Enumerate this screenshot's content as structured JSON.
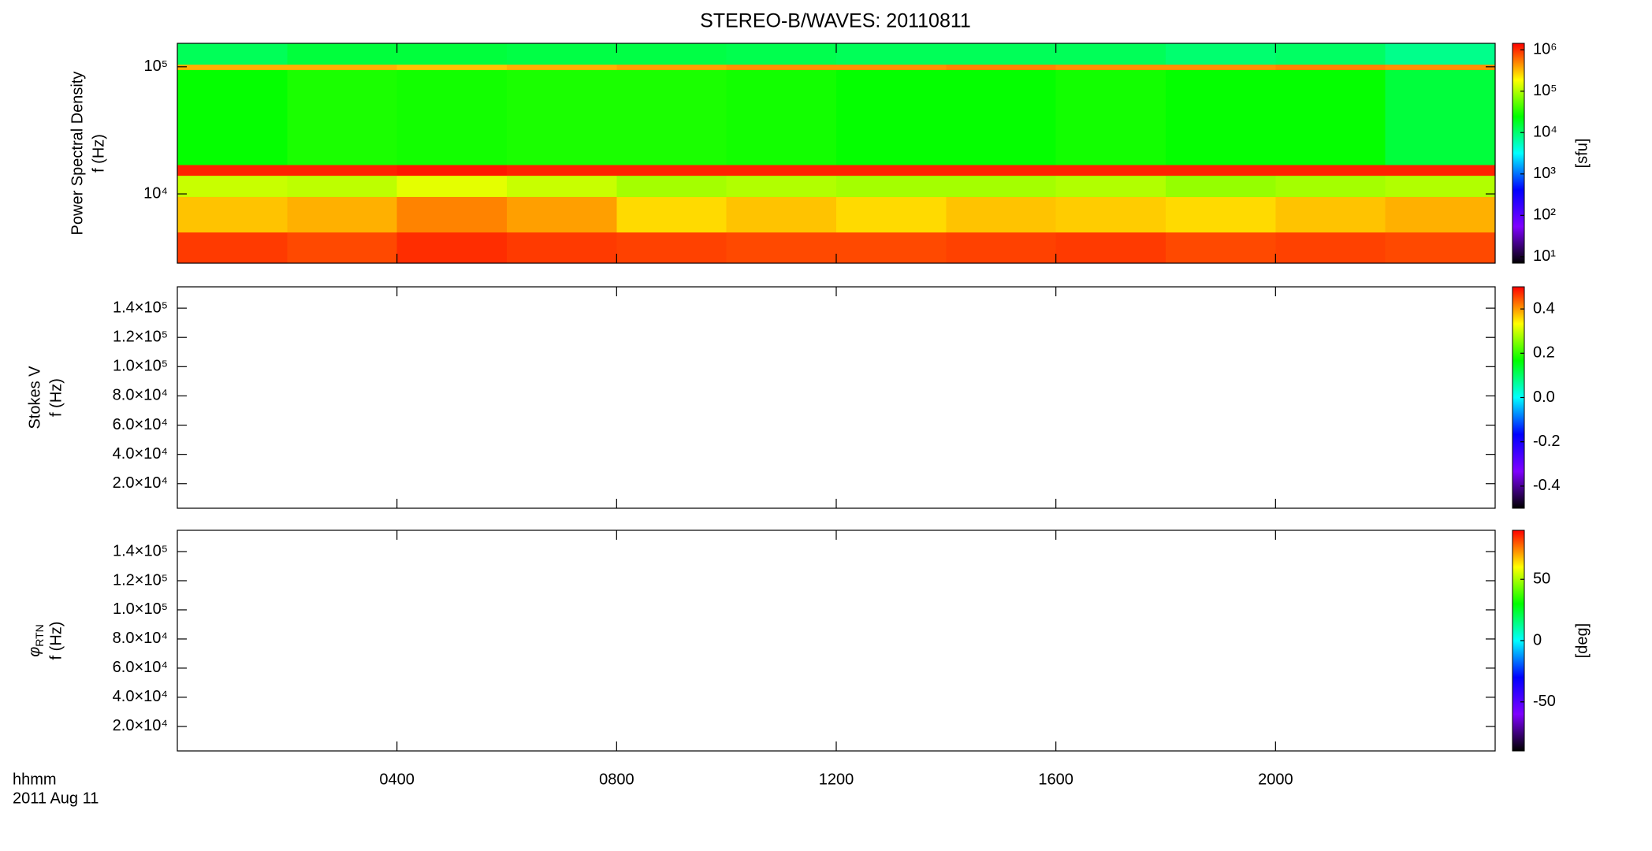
{
  "chart_data": [
    {
      "type": "heatmap",
      "title": "STEREO-B/WAVES: 20110811",
      "ylabel": [
        "Power Spectral Density",
        "f (Hz)"
      ],
      "log_y": true,
      "ylim": [
        2850,
        153000
      ],
      "yticks": [
        {
          "value": 10000,
          "label": "10⁴"
        },
        {
          "value": 100000,
          "label": "10⁵"
        }
      ],
      "xlim": [
        0,
        24
      ],
      "x_bins": [
        0,
        2,
        4,
        6,
        8,
        10,
        12,
        14,
        16,
        18,
        20,
        22,
        24
      ],
      "y_bins": [
        2850,
        5000,
        9500,
        14000,
        17000,
        95000,
        105000,
        153000
      ],
      "values": [
        [
          900000,
          800000,
          1000000,
          900000,
          850000,
          800000,
          800000,
          850000,
          900000,
          800000,
          850000,
          800000
        ],
        [
          300000,
          350000,
          500000,
          400000,
          250000,
          300000,
          250000,
          300000,
          280000,
          250000,
          300000,
          350000
        ],
        [
          120000,
          110000,
          150000,
          120000,
          90000,
          100000,
          90000,
          90000,
          100000,
          80000,
          90000,
          100000
        ],
        [
          1100000,
          1100000,
          1200000,
          1100000,
          1100000,
          1100000,
          1100000,
          1100000,
          1100000,
          1100000,
          1100000,
          1100000
        ],
        [
          25000,
          30000,
          28000,
          30000,
          30000,
          28000,
          25000,
          25000,
          28000,
          25000,
          25000,
          15000
        ],
        [
          350000,
          350000,
          300000,
          350000,
          400000,
          450000,
          450000,
          500000,
          450000,
          450000,
          500000,
          450000
        ],
        [
          12000,
          15000,
          15000,
          14000,
          14000,
          13000,
          12000,
          12000,
          12000,
          10000,
          11000,
          8000
        ]
      ],
      "colormap": [
        "#000000",
        "#7f00ff",
        "#0000ff",
        "#00ffff",
        "#00ff00",
        "#ffff00",
        "#ff0000"
      ],
      "colorbar": {
        "log": true,
        "clim": [
          7,
          1430000
        ],
        "label": "[sfu]",
        "ticks": [
          {
            "value": 10,
            "label": "10¹"
          },
          {
            "value": 100,
            "label": "10²"
          },
          {
            "value": 1000,
            "label": "10³"
          },
          {
            "value": 10000,
            "label": "10⁴"
          },
          {
            "value": 100000,
            "label": "10⁵"
          },
          {
            "value": 1000000,
            "label": "10⁶"
          }
        ]
      }
    },
    {
      "type": "heatmap",
      "ylabel": [
        "Stokes V",
        "f (Hz)"
      ],
      "log_y": false,
      "ylim": [
        3170,
        154600
      ],
      "yticks": [
        {
          "value": 20000,
          "label": "2.0×10⁴"
        },
        {
          "value": 40000,
          "label": "4.0×10⁴"
        },
        {
          "value": 60000,
          "label": "6.0×10⁴"
        },
        {
          "value": 80000,
          "label": "8.0×10⁴"
        },
        {
          "value": 100000,
          "label": "1.0×10⁵"
        },
        {
          "value": 120000,
          "label": "1.2×10⁵"
        },
        {
          "value": 140000,
          "label": "1.4×10⁵"
        }
      ],
      "xlim": [
        0,
        24
      ],
      "colormap": [
        "#000000",
        "#7f00ff",
        "#0000ff",
        "#00ffff",
        "#00ff00",
        "#ffff00",
        "#ff0000"
      ],
      "colorbar": {
        "log": false,
        "clim": [
          -0.5,
          0.5
        ],
        "ticks": [
          0.4,
          0.2,
          {
            "value": 0,
            "label": "0.0"
          },
          -0.2,
          -0.4
        ]
      }
    },
    {
      "type": "heatmap",
      "ylabel_symbol": "φ",
      "ylabel_subscript": "RTN",
      "ylabel": [
        "f (Hz)"
      ],
      "log_y": false,
      "ylim": [
        3170,
        154600
      ],
      "yticks": [
        {
          "value": 20000,
          "label": "2.0×10⁴"
        },
        {
          "value": 40000,
          "label": "4.0×10⁴"
        },
        {
          "value": 60000,
          "label": "6.0×10⁴"
        },
        {
          "value": 80000,
          "label": "8.0×10⁴"
        },
        {
          "value": 100000,
          "label": "1.0×10⁵"
        },
        {
          "value": 120000,
          "label": "1.2×10⁵"
        },
        {
          "value": 140000,
          "label": "1.4×10⁵"
        }
      ],
      "xlim": [
        0,
        24
      ],
      "xticks": [
        {
          "value": 4,
          "label": "0400"
        },
        {
          "value": 8,
          "label": "0800"
        },
        {
          "value": 12,
          "label": "1200"
        },
        {
          "value": 16,
          "label": "1600"
        },
        {
          "value": 20,
          "label": "2000"
        }
      ],
      "xlabel": "hhmm",
      "date": "2011 Aug 11",
      "colormap": [
        "#000000",
        "#7f00ff",
        "#0000ff",
        "#00ffff",
        "#00ff00",
        "#ffff00",
        "#ff0000"
      ],
      "colorbar": {
        "log": false,
        "clim": [
          -90,
          90
        ],
        "label": "[deg]",
        "ticks": [
          50,
          0,
          -50
        ]
      }
    }
  ]
}
